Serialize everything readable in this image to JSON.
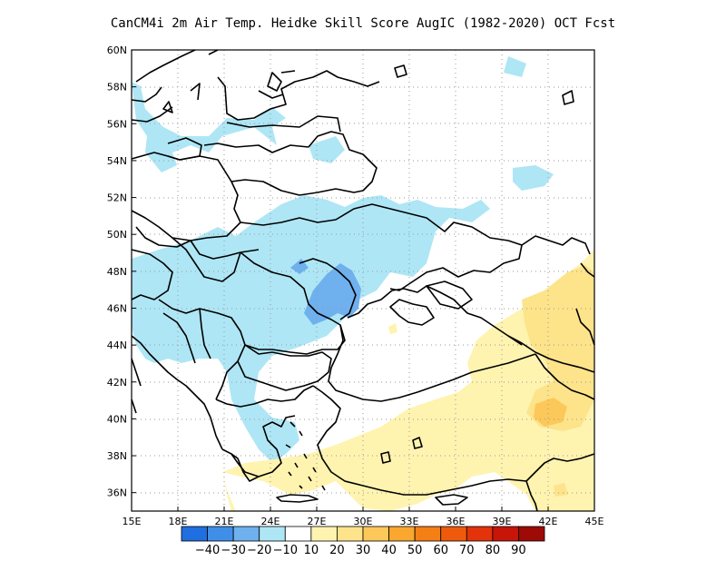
{
  "title": "CanCM4i  2m Air Temp. Heidke Skill Score AugIC (1982-2020) OCT Fcst",
  "map": {
    "lon_range": [
      15,
      45
    ],
    "lat_range": [
      35,
      60
    ],
    "x_ticks": [
      "15E",
      "18E",
      "21E",
      "24E",
      "27E",
      "30E",
      "33E",
      "36E",
      "39E",
      "42E",
      "45E"
    ],
    "y_ticks": [
      "36N",
      "38N",
      "40N",
      "42N",
      "44N",
      "46N",
      "48N",
      "50N",
      "52N",
      "54N",
      "56N",
      "58N",
      "60N"
    ],
    "gridlines": "dotted"
  },
  "colorbar": {
    "colors": [
      "#1f6fe0",
      "#3f8fe8",
      "#6fb0ee",
      "#aee6f5",
      "#ffffff",
      "#fff3b0",
      "#fde38a",
      "#fcc85a",
      "#f9a72e",
      "#f47f14",
      "#ee5a0c",
      "#e2330a",
      "#c8150a",
      "#9e0a06"
    ],
    "labels": [
      "-40",
      "-30",
      "-20",
      "-10",
      "10",
      "20",
      "30",
      "40",
      "50",
      "60",
      "70",
      "80",
      "90"
    ]
  }
}
